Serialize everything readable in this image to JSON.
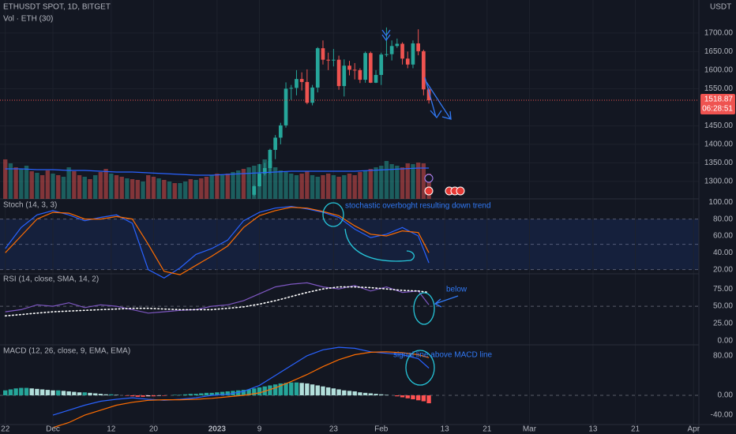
{
  "header": {
    "symbol": "ETHUSDT SPOT, 1D, BITGET",
    "currency": "USDT",
    "last_price": 1518.87,
    "countdown": "06:28:51"
  },
  "chart_data": [
    {
      "type": "candlestick",
      "ylim": [
        1253,
        1789
      ],
      "grid": true,
      "up_color": "#26a69a",
      "down_color": "#ef5350",
      "yticks": [
        {
          "value": 1700,
          "label": "1700.00"
        },
        {
          "value": 1650,
          "label": "1650.00"
        },
        {
          "value": 1600,
          "label": "1600.00"
        },
        {
          "value": 1550,
          "label": "1550.00"
        },
        {
          "value": 1450,
          "label": "1450.00"
        },
        {
          "value": 1400,
          "label": "1400.00"
        },
        {
          "value": 1350,
          "label": "1350.00"
        },
        {
          "value": 1300,
          "label": "1300.00"
        }
      ],
      "x": [
        "2023-01-08",
        "2023-01-09",
        "2023-01-10",
        "2023-01-11",
        "2023-01-12",
        "2023-01-13",
        "2023-01-14",
        "2023-01-15",
        "2023-01-16",
        "2023-01-17",
        "2023-01-18",
        "2023-01-19",
        "2023-01-20",
        "2023-01-21",
        "2023-01-22",
        "2023-01-23",
        "2023-01-24",
        "2023-01-25",
        "2023-01-26",
        "2023-01-27",
        "2023-01-28",
        "2023-01-29",
        "2023-01-30",
        "2023-01-31",
        "2023-02-01",
        "2023-02-02",
        "2023-02-03",
        "2023-02-04",
        "2023-02-05",
        "2023-02-06",
        "2023-02-07",
        "2023-02-08",
        "2023-02-09",
        "2023-02-10"
      ],
      "open": [
        1264,
        1287,
        1321,
        1336,
        1385,
        1418,
        1451,
        1550,
        1552,
        1576,
        1568,
        1512,
        1553,
        1659,
        1628,
        1627,
        1628,
        1557,
        1612,
        1601,
        1600,
        1574,
        1646,
        1566,
        1587,
        1642,
        1643,
        1665,
        1671,
        1631,
        1615,
        1672,
        1651,
        1548
      ],
      "high": [
        1290,
        1347,
        1350,
        1388,
        1425,
        1458,
        1567,
        1560,
        1600,
        1594,
        1602,
        1560,
        1662,
        1680,
        1647,
        1657,
        1639,
        1629,
        1625,
        1619,
        1605,
        1650,
        1650,
        1600,
        1647,
        1715,
        1680,
        1685,
        1675,
        1650,
        1680,
        1710,
        1655,
        1552
      ],
      "low": [
        1260,
        1286,
        1316,
        1320,
        1360,
        1400,
        1445,
        1520,
        1532,
        1545,
        1508,
        1505,
        1540,
        1615,
        1600,
        1610,
        1547,
        1529,
        1586,
        1575,
        1565,
        1566,
        1565,
        1565,
        1560,
        1636,
        1626,
        1660,
        1615,
        1605,
        1605,
        1640,
        1532,
        1510
      ],
      "close": [
        1287,
        1321,
        1336,
        1385,
        1418,
        1451,
        1550,
        1552,
        1576,
        1568,
        1512,
        1553,
        1659,
        1628,
        1627,
        1628,
        1557,
        1612,
        1601,
        1600,
        1574,
        1646,
        1566,
        1587,
        1642,
        1643,
        1665,
        1671,
        1631,
        1615,
        1672,
        1651,
        1548,
        1518.87
      ]
    },
    {
      "type": "bar",
      "title": "Vol · ETH (30)",
      "ylim": [
        0,
        60
      ],
      "up_color": "#26a69a",
      "down_color": "#ef5350",
      "x": [
        "2022-11-22",
        "2022-11-23",
        "2022-11-24",
        "2022-11-25",
        "2022-11-26",
        "2022-11-27",
        "2022-11-28",
        "2022-11-29",
        "2022-11-30",
        "2022-12-01",
        "2022-12-02",
        "2022-12-03",
        "2022-12-04",
        "2022-12-05",
        "2022-12-06",
        "2022-12-07",
        "2022-12-08",
        "2022-12-09",
        "2022-12-10",
        "2022-12-11",
        "2022-12-12",
        "2022-12-13",
        "2022-12-14",
        "2022-12-15",
        "2022-12-16",
        "2022-12-17",
        "2022-12-18",
        "2022-12-19",
        "2022-12-20",
        "2022-12-21",
        "2022-12-22",
        "2022-12-23",
        "2022-12-24",
        "2022-12-25",
        "2022-12-26",
        "2022-12-27",
        "2022-12-28",
        "2022-12-29",
        "2022-12-30",
        "2022-12-31",
        "2023-01-01",
        "2023-01-02",
        "2023-01-03",
        "2023-01-04",
        "2023-01-05",
        "2023-01-06",
        "2023-01-07",
        "2023-01-08",
        "2023-01-09",
        "2023-01-10",
        "2023-01-11",
        "2023-01-12",
        "2023-01-13",
        "2023-01-14",
        "2023-01-15",
        "2023-01-16",
        "2023-01-17",
        "2023-01-18",
        "2023-01-19",
        "2023-01-20",
        "2023-01-21",
        "2023-01-22",
        "2023-01-23",
        "2023-01-24",
        "2023-01-25",
        "2023-01-26",
        "2023-01-27",
        "2023-01-28",
        "2023-01-29",
        "2023-01-30",
        "2023-01-31",
        "2023-02-01",
        "2023-02-02",
        "2023-02-03",
        "2023-02-04",
        "2023-02-05",
        "2023-02-06",
        "2023-02-07",
        "2023-02-08",
        "2023-02-09",
        "2023-02-10"
      ],
      "values": [
        50,
        45,
        40,
        38,
        42,
        35,
        33,
        30,
        36,
        32,
        30,
        28,
        40,
        35,
        30,
        28,
        25,
        30,
        34,
        38,
        32,
        30,
        28,
        26,
        25,
        24,
        22,
        30,
        28,
        26,
        24,
        22,
        20,
        20,
        22,
        25,
        24,
        26,
        28,
        30,
        32,
        30,
        32,
        34,
        36,
        38,
        40,
        42,
        44,
        50,
        48,
        40,
        36,
        34,
        32,
        30,
        32,
        35,
        30,
        28,
        30,
        32,
        30,
        28,
        30,
        32,
        30,
        34,
        36,
        38,
        40,
        42,
        48,
        44,
        42,
        40,
        45,
        44,
        46,
        45,
        32
      ],
      "up": [
        false,
        true,
        false,
        true,
        true,
        false,
        true,
        false,
        false,
        true,
        false,
        true,
        true,
        false,
        false,
        true,
        false,
        true,
        false,
        false,
        true,
        false,
        false,
        true,
        false,
        false,
        true,
        false,
        false,
        true,
        false,
        true,
        false,
        true,
        true,
        false,
        true,
        false,
        false,
        true,
        false,
        true,
        false,
        true,
        true,
        false,
        true,
        true,
        true,
        true,
        true,
        true,
        true,
        true,
        true,
        true,
        false,
        false,
        true,
        true,
        false,
        false,
        true,
        false,
        true,
        false,
        false,
        false,
        true,
        false,
        true,
        true,
        true,
        true,
        true,
        false,
        false,
        true,
        false,
        false,
        false
      ],
      "ma": {
        "color": "#2962ff",
        "x": [
          "2022-11-22",
          "2022-11-25",
          "2022-11-28",
          "2022-12-01",
          "2022-12-04",
          "2022-12-07",
          "2022-12-10",
          "2022-12-13",
          "2022-12-16",
          "2022-12-19",
          "2022-12-22",
          "2022-12-25",
          "2022-12-28",
          "2022-12-31",
          "2023-01-03",
          "2023-01-06",
          "2023-01-09",
          "2023-01-12",
          "2023-01-15",
          "2023-01-18",
          "2023-01-21",
          "2023-01-24",
          "2023-01-27",
          "2023-01-30",
          "2023-02-02",
          "2023-02-05",
          "2023-02-08",
          "2023-02-10"
        ],
        "values": [
          38,
          38,
          37,
          37,
          36,
          36,
          35,
          34,
          34,
          33,
          32,
          31,
          30,
          30,
          31,
          32,
          33,
          34,
          35,
          35,
          35,
          35,
          35,
          36,
          37,
          38,
          39,
          39
        ]
      }
    },
    {
      "type": "line",
      "title": "Stoch (14, 3, 3)",
      "annotation": "stochastic overboght resulting down trend",
      "ylim": [
        15,
        104
      ],
      "band": [
        20,
        80
      ],
      "band_color": "#2962ff",
      "hlines": [
        80,
        50,
        20
      ],
      "yticks": [
        {
          "value": 100,
          "label": "100.00"
        },
        {
          "value": 80,
          "label": "80.00"
        },
        {
          "value": 60,
          "label": "60.00"
        },
        {
          "value": 40,
          "label": "40.00"
        },
        {
          "value": 20,
          "label": "20.00"
        }
      ],
      "x": [
        "2022-11-22",
        "2022-11-25",
        "2022-11-28",
        "2022-12-01",
        "2022-12-04",
        "2022-12-07",
        "2022-12-10",
        "2022-12-13",
        "2022-12-16",
        "2022-12-19",
        "2022-12-22",
        "2022-12-25",
        "2022-12-28",
        "2022-12-31",
        "2023-01-03",
        "2023-01-06",
        "2023-01-09",
        "2023-01-12",
        "2023-01-15",
        "2023-01-18",
        "2023-01-21",
        "2023-01-24",
        "2023-01-27",
        "2023-01-30",
        "2023-02-02",
        "2023-02-05",
        "2023-02-08",
        "2023-02-10"
      ],
      "series": [
        {
          "color": "#2962ff",
          "values": [
            45,
            70,
            85,
            90,
            85,
            78,
            82,
            85,
            75,
            20,
            10,
            22,
            38,
            45,
            55,
            78,
            88,
            93,
            95,
            92,
            88,
            82,
            68,
            58,
            62,
            70,
            60,
            28
          ]
        },
        {
          "color": "#ff6d00",
          "values": [
            40,
            60,
            80,
            88,
            87,
            80,
            80,
            83,
            80,
            50,
            18,
            14,
            25,
            36,
            48,
            70,
            84,
            90,
            94,
            93,
            89,
            84,
            72,
            62,
            60,
            66,
            64,
            40
          ]
        }
      ]
    },
    {
      "type": "line",
      "title": "RSI (14, close, SMA, 14, 2)",
      "annotation": "below",
      "ylim": [
        -6,
        97
      ],
      "hlines": [
        50
      ],
      "yticks": [
        {
          "value": 75,
          "label": "75.00"
        },
        {
          "value": 50,
          "label": "50.00"
        },
        {
          "value": 25,
          "label": "25.00"
        },
        {
          "value": 0,
          "label": "0.00"
        }
      ],
      "x": [
        "2022-11-22",
        "2022-11-25",
        "2022-11-28",
        "2022-12-01",
        "2022-12-04",
        "2022-12-07",
        "2022-12-10",
        "2022-12-13",
        "2022-12-16",
        "2022-12-19",
        "2022-12-22",
        "2022-12-25",
        "2022-12-28",
        "2022-12-31",
        "2023-01-03",
        "2023-01-06",
        "2023-01-09",
        "2023-01-12",
        "2023-01-15",
        "2023-01-18",
        "2023-01-21",
        "2023-01-24",
        "2023-01-27",
        "2023-01-30",
        "2023-02-02",
        "2023-02-05",
        "2023-02-08",
        "2023-02-10"
      ],
      "series": [
        {
          "color": "#7e57c2",
          "values": [
            42,
            45,
            52,
            50,
            55,
            48,
            52,
            50,
            45,
            40,
            42,
            44,
            45,
            50,
            52,
            58,
            68,
            78,
            82,
            84,
            78,
            75,
            80,
            72,
            78,
            70,
            72,
            52
          ]
        },
        {
          "color": "#ffffff",
          "dash": "dotted",
          "values": [
            36,
            38,
            40,
            42,
            43,
            44,
            45,
            46,
            47,
            47,
            46,
            45,
            45,
            45,
            47,
            49,
            53,
            58,
            64,
            70,
            75,
            78,
            78,
            77,
            75,
            73,
            72,
            70
          ]
        }
      ]
    },
    {
      "type": "macd",
      "title": "MACD (12, 26, close, 9, EMA, EMA)",
      "annotation": "signal line above MACD line",
      "ylim": [
        -59,
        102
      ],
      "hlines": [
        0
      ],
      "xlim": [
        "2022-11-21",
        "2023-04-02"
      ],
      "xticks": [
        {
          "value": "2022-11-22",
          "label": "22"
        },
        {
          "value": "2022-12-01",
          "label": "Dec"
        },
        {
          "value": "2022-12-12",
          "label": "12"
        },
        {
          "value": "2022-12-20",
          "label": "20"
        },
        {
          "value": "2023-01-01",
          "label": "2023"
        },
        {
          "value": "2023-01-09",
          "label": "9"
        },
        {
          "value": "2023-01-23",
          "label": "23"
        },
        {
          "value": "2023-02-01",
          "label": "Feb"
        },
        {
          "value": "2023-02-13",
          "label": "13"
        },
        {
          "value": "2023-02-21",
          "label": "21"
        },
        {
          "value": "2023-03-01",
          "label": "Mar"
        },
        {
          "value": "2023-03-13",
          "label": "13"
        },
        {
          "value": "2023-03-21",
          "label": "21"
        },
        {
          "value": "2023-04-01",
          "label": "Apr"
        }
      ],
      "yticks": [
        {
          "value": 80,
          "label": "80.00"
        },
        {
          "value": 0,
          "label": "0.00"
        },
        {
          "value": -40,
          "label": "-40.00"
        }
      ],
      "hist_colors": [
        "#26a69a",
        "#b2dfdb",
        "#ffcdd2",
        "#ff5252"
      ],
      "histogram": [
        10,
        12,
        14,
        15,
        15,
        14,
        13,
        12,
        11,
        10,
        10,
        9,
        8,
        7,
        6,
        6,
        5,
        4,
        3,
        2,
        2,
        1,
        0,
        -1,
        -2,
        -3,
        -3,
        -2,
        -2,
        -1,
        -1,
        0,
        1,
        1,
        2,
        3,
        3,
        4,
        5,
        5,
        6,
        7,
        8,
        9,
        10,
        11,
        12,
        14,
        16,
        18,
        20,
        22,
        24,
        25,
        26,
        26,
        25,
        24,
        22,
        20,
        18,
        16,
        14,
        12,
        10,
        9,
        8,
        6,
        5,
        4,
        3,
        2,
        1,
        0,
        -2,
        -4,
        -6,
        -8,
        -10,
        -12,
        -16
      ],
      "x": [
        "2022-12-01",
        "2022-12-04",
        "2022-12-07",
        "2022-12-10",
        "2022-12-13",
        "2022-12-16",
        "2022-12-19",
        "2022-12-22",
        "2022-12-25",
        "2022-12-28",
        "2022-12-31",
        "2023-01-03",
        "2023-01-06",
        "2023-01-09",
        "2023-01-12",
        "2023-01-15",
        "2023-01-18",
        "2023-01-21",
        "2023-01-24",
        "2023-01-27",
        "2023-01-30",
        "2023-02-02",
        "2023-02-05",
        "2023-02-08",
        "2023-02-10"
      ],
      "series": [
        {
          "color": "#2962ff",
          "values": [
            -40,
            -30,
            -20,
            -12,
            -8,
            -5,
            -8,
            -10,
            -8,
            -5,
            0,
            2,
            8,
            20,
            40,
            60,
            80,
            92,
            97,
            95,
            88,
            85,
            82,
            74,
            55
          ]
        },
        {
          "color": "#ff6d00",
          "values": [
            -65,
            -55,
            -40,
            -30,
            -20,
            -14,
            -10,
            -9,
            -9,
            -8,
            -6,
            -3,
            0,
            5,
            15,
            28,
            42,
            58,
            72,
            82,
            87,
            88,
            86,
            82,
            76
          ]
        }
      ]
    }
  ]
}
